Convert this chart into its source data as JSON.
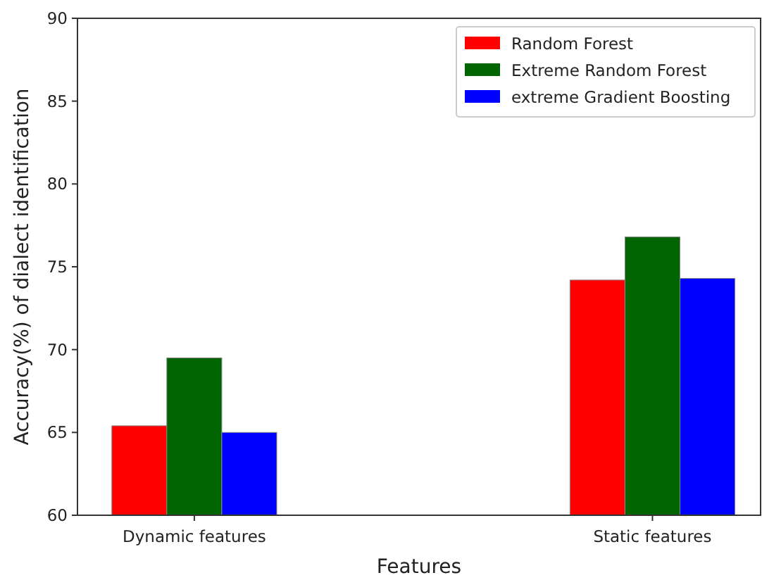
{
  "chart_data": {
    "type": "bar",
    "xlabel": "Features",
    "ylabel": "Accuracy(%) of dialect identification",
    "categories": [
      "Dynamic features",
      "Static features"
    ],
    "series": [
      {
        "name": "Random Forest",
        "color": "#ff0000",
        "values": [
          65.4,
          74.2
        ]
      },
      {
        "name": "Extreme Random Forest",
        "color": "#006400",
        "values": [
          69.5,
          76.8
        ]
      },
      {
        "name": "extreme Gradient Boosting",
        "color": "#0000ff",
        "values": [
          65.0,
          74.3
        ]
      }
    ],
    "ylim": [
      60,
      90
    ],
    "yticks": [
      60,
      65,
      70,
      75,
      80,
      85,
      90
    ],
    "legend": "top right",
    "grid": false
  }
}
